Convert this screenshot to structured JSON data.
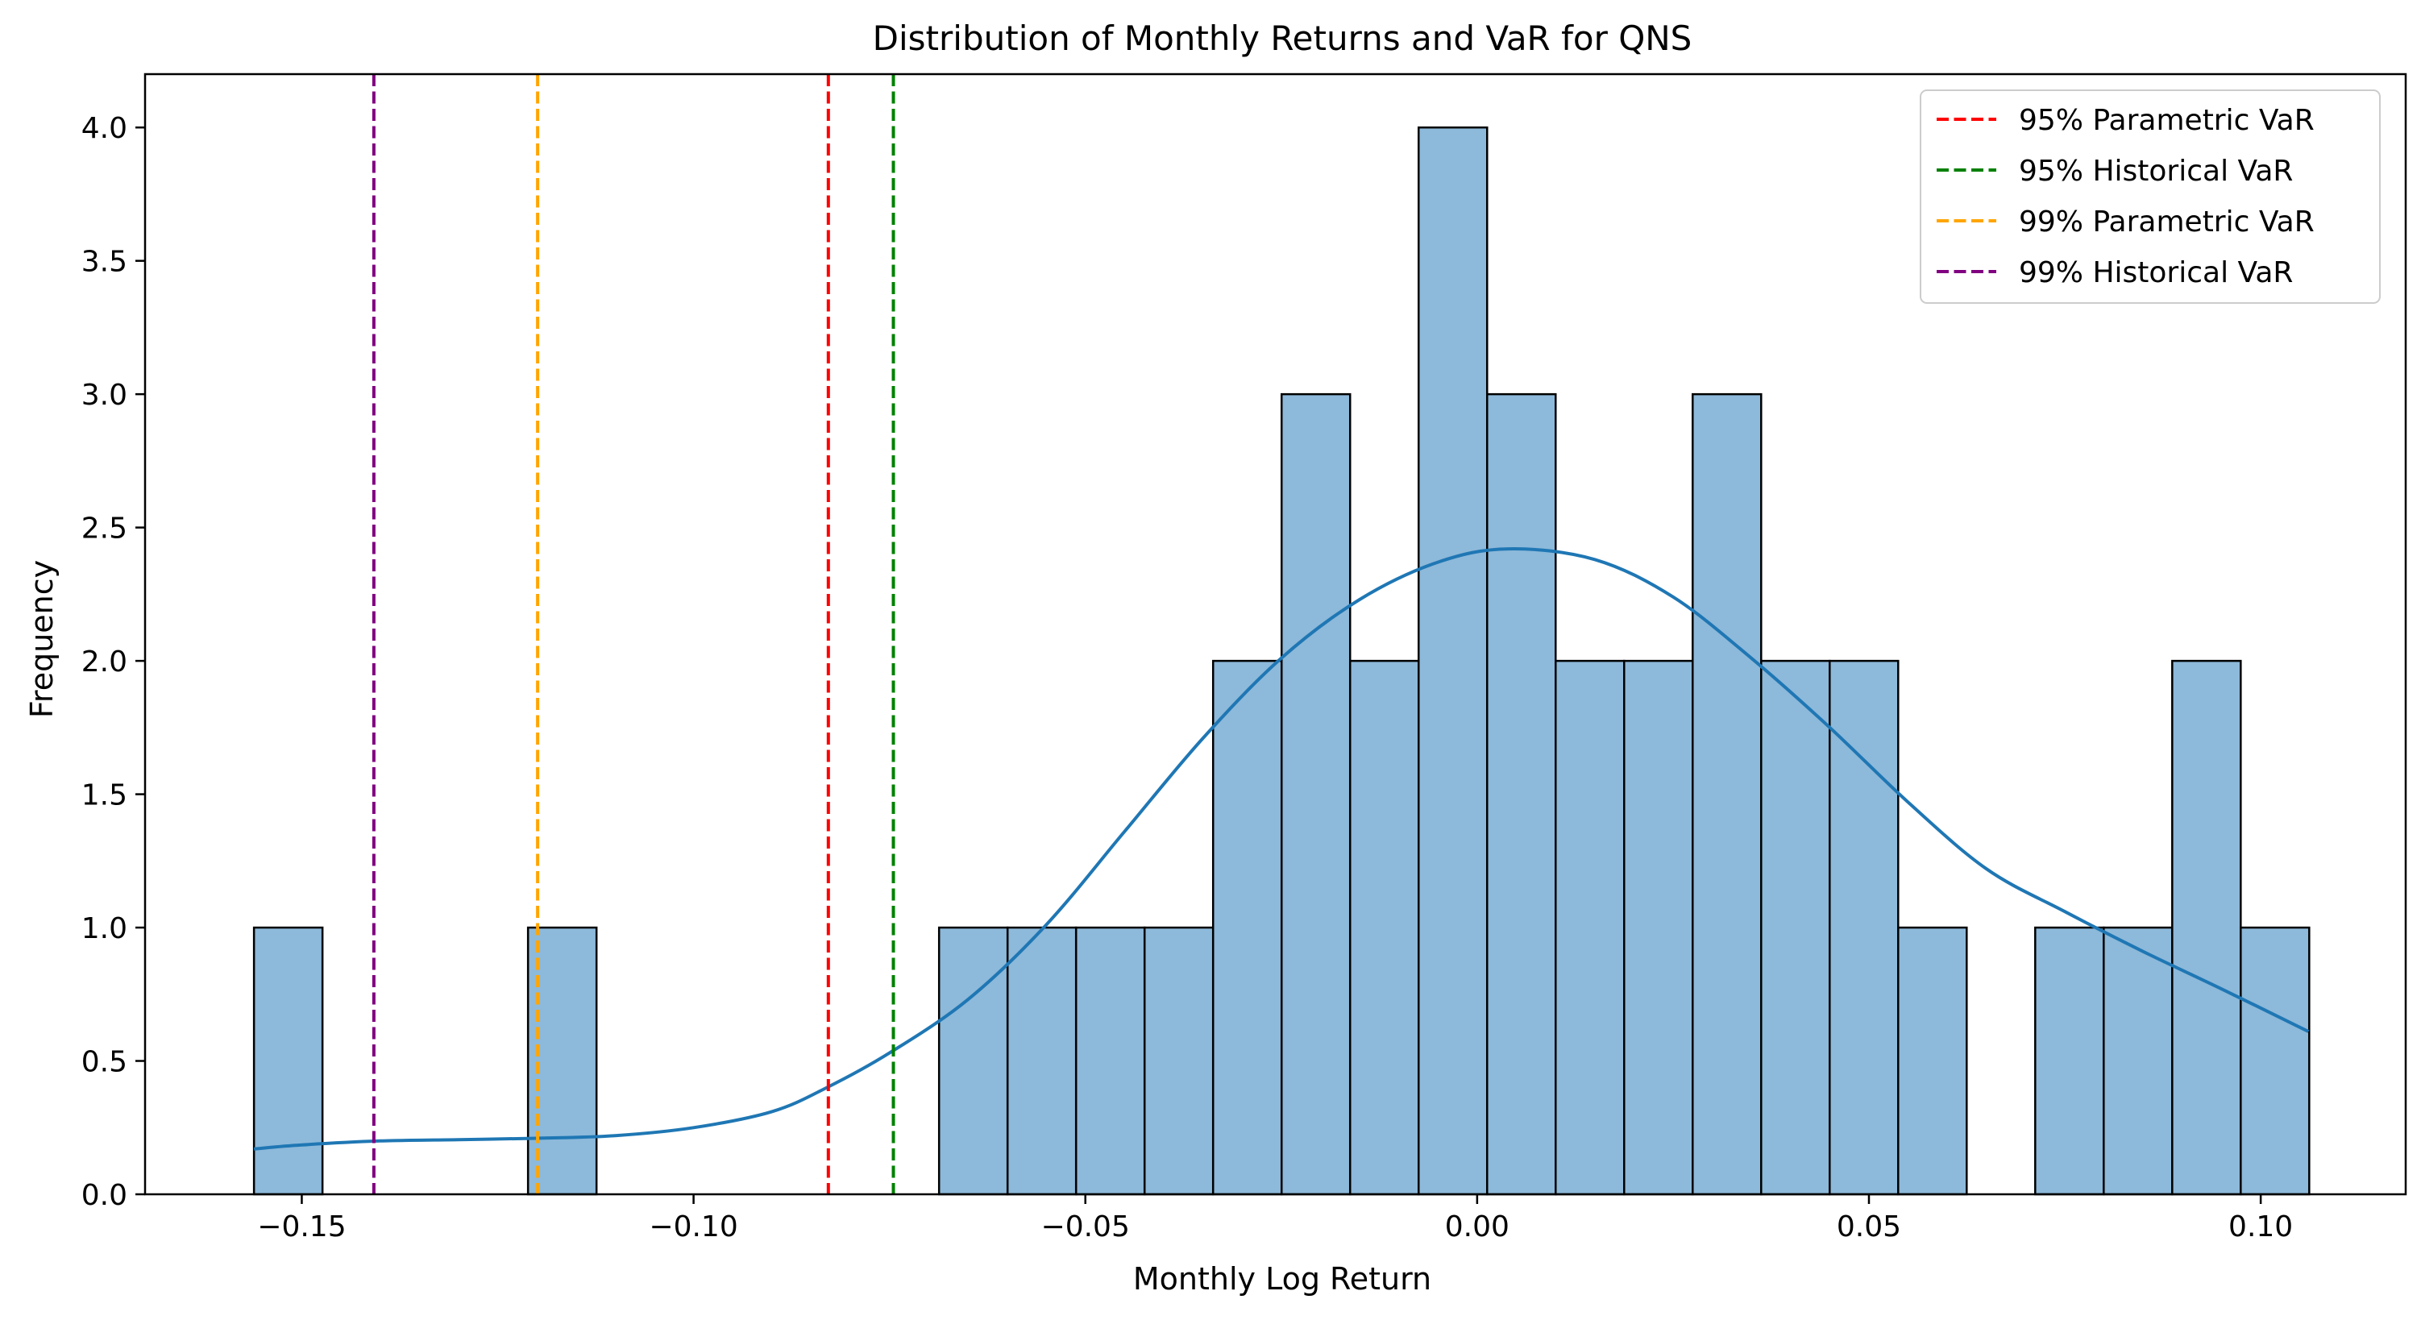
{
  "chart_data": {
    "type": "bar",
    "title": "Distribution of Monthly Returns and VaR for QNS",
    "xlabel": "Monthly Log Return",
    "ylabel": "Frequency",
    "xlim": [
      -0.17,
      0.1185
    ],
    "ylim": [
      0,
      4.2
    ],
    "x_ticks": [
      -0.15,
      -0.1,
      -0.05,
      0.0,
      0.05,
      0.1
    ],
    "x_tick_labels": [
      "−0.15",
      "−0.10",
      "−0.05",
      "0.00",
      "0.05",
      "0.10"
    ],
    "y_ticks": [
      0.0,
      0.5,
      1.0,
      1.5,
      2.0,
      2.5,
      3.0,
      3.5,
      4.0
    ],
    "y_tick_labels": [
      "0.0",
      "0.5",
      "1.0",
      "1.5",
      "2.0",
      "2.5",
      "3.0",
      "3.5",
      "4.0"
    ],
    "grid": false,
    "legend_position": "top-right",
    "histogram": {
      "bin_start": -0.1561,
      "bin_width": 0.008743,
      "counts": [
        1,
        0,
        0,
        0,
        1,
        0,
        0,
        0,
        0,
        0,
        1,
        1,
        1,
        1,
        2,
        3,
        2,
        4,
        3,
        2,
        2,
        3,
        2,
        2,
        1,
        0,
        1,
        1,
        2,
        1
      ],
      "fill_color": "#8db9da",
      "edge_color": "#000000"
    },
    "kde": {
      "color": "#1f77b4",
      "points": [
        [
          -0.1561,
          0.17
        ],
        [
          -0.15,
          0.185
        ],
        [
          -0.14,
          0.2
        ],
        [
          -0.13,
          0.205
        ],
        [
          -0.12,
          0.21
        ],
        [
          -0.11,
          0.22
        ],
        [
          -0.1,
          0.25
        ],
        [
          -0.09,
          0.31
        ],
        [
          -0.083,
          0.4
        ],
        [
          -0.075,
          0.53
        ],
        [
          -0.065,
          0.73
        ],
        [
          -0.055,
          1.01
        ],
        [
          -0.045,
          1.36
        ],
        [
          -0.035,
          1.71
        ],
        [
          -0.025,
          2.01
        ],
        [
          -0.015,
          2.23
        ],
        [
          -0.005,
          2.37
        ],
        [
          0.004,
          2.42
        ],
        [
          0.015,
          2.38
        ],
        [
          0.025,
          2.24
        ],
        [
          0.035,
          2.01
        ],
        [
          0.045,
          1.75
        ],
        [
          0.055,
          1.47
        ],
        [
          0.065,
          1.22
        ],
        [
          0.075,
          1.06
        ],
        [
          0.085,
          0.91
        ],
        [
          0.095,
          0.77
        ],
        [
          0.1061,
          0.61
        ]
      ]
    },
    "var_lines": [
      {
        "name": "95% Parametric VaR",
        "x": -0.0828,
        "color": "#ff0000"
      },
      {
        "name": "95% Historical VaR",
        "x": -0.0745,
        "color": "#008000"
      },
      {
        "name": "99% Parametric VaR",
        "x": -0.1199,
        "color": "#ffa500"
      },
      {
        "name": "99% Historical VaR",
        "x": -0.1408,
        "color": "#800080"
      }
    ]
  }
}
